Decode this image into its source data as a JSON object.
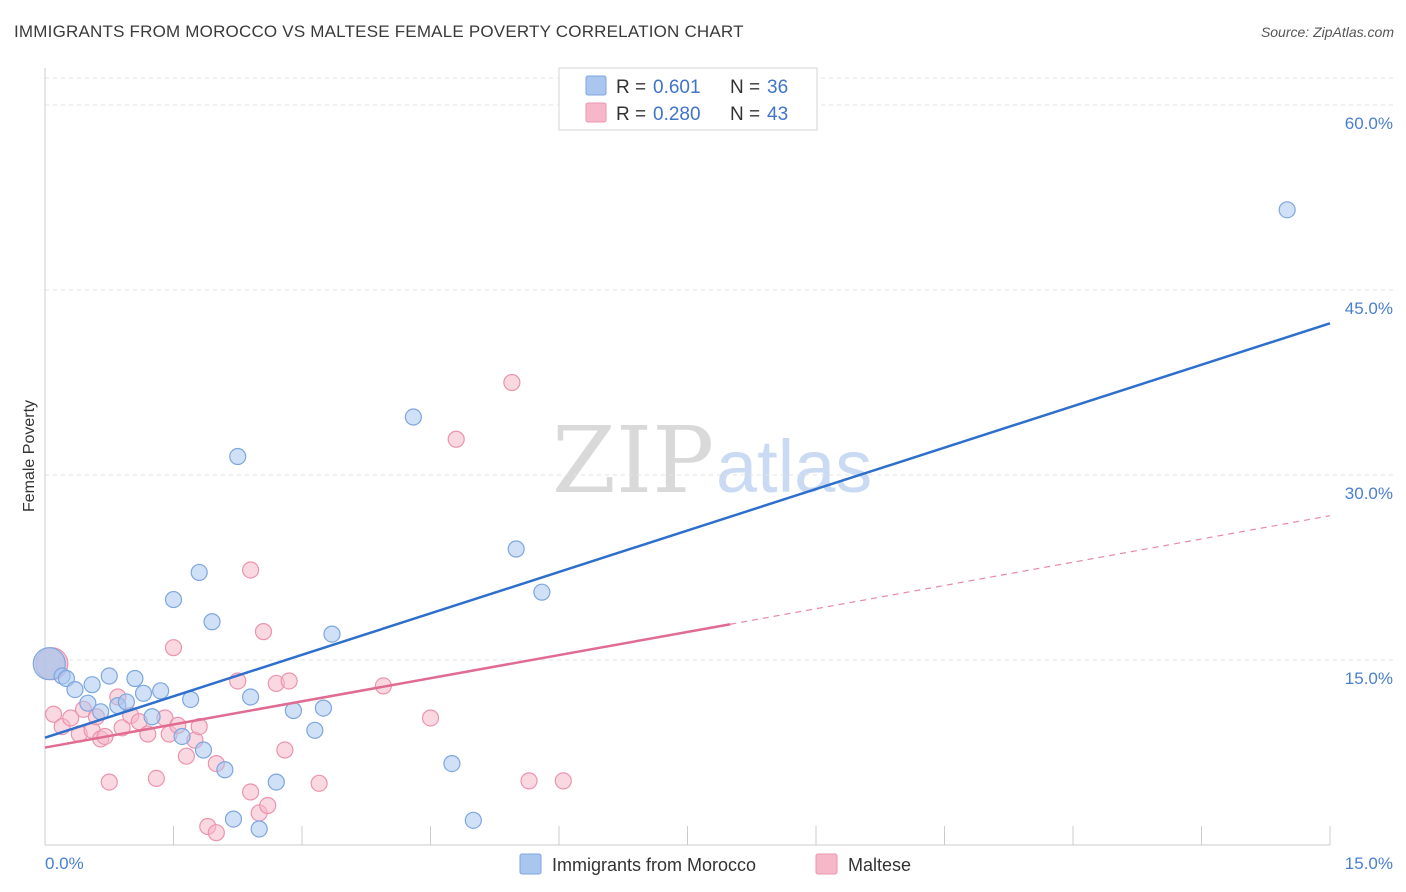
{
  "title": "IMMIGRANTS FROM MOROCCO VS MALTESE FEMALE POVERTY CORRELATION CHART",
  "source": "Source: ZipAtlas.com",
  "watermark": {
    "zip": "ZIP",
    "atlas": "atlas"
  },
  "legend_top": [
    {
      "r_label": "R =",
      "r_value": "0.601",
      "n_label": "N =",
      "n_value": "36",
      "color": "#a9c6ee"
    },
    {
      "r_label": "R =",
      "r_value": "0.280",
      "n_label": "N =",
      "n_value": "43",
      "color": "#f6b8c9"
    }
  ],
  "chart_data": {
    "type": "scatter",
    "title": "IMMIGRANTS FROM MOROCCO VS MALTESE FEMALE POVERTY CORRELATION CHART",
    "xlabel": "",
    "ylabel": "Female Poverty",
    "xlim": [
      0,
      15
    ],
    "ylim": [
      0,
      63
    ],
    "x_tick_labels": [
      "0.0%",
      "15.0%"
    ],
    "y_ticks": [
      15,
      30,
      45,
      60
    ],
    "y_tick_labels": [
      "15.0%",
      "30.0%",
      "45.0%",
      "60.0%"
    ],
    "grid": true,
    "series": [
      {
        "name": "Immigrants from Morocco",
        "color": "#a9c6ee",
        "line_color": "#2f6fcc",
        "trend": {
          "x": [
            0,
            15
          ],
          "y": [
            8.7,
            42.3
          ],
          "dashed_from": null
        },
        "points": [
          [
            0.05,
            14.7
          ],
          [
            0.2,
            13.7
          ],
          [
            0.25,
            13.5
          ],
          [
            0.35,
            12.6
          ],
          [
            0.5,
            11.5
          ],
          [
            0.55,
            13.0
          ],
          [
            0.65,
            10.8
          ],
          [
            0.75,
            13.7
          ],
          [
            0.85,
            11.3
          ],
          [
            0.95,
            11.6
          ],
          [
            1.05,
            13.5
          ],
          [
            1.15,
            12.3
          ],
          [
            1.25,
            10.4
          ],
          [
            1.35,
            12.5
          ],
          [
            1.5,
            19.9
          ],
          [
            1.6,
            8.8
          ],
          [
            1.7,
            11.8
          ],
          [
            1.8,
            22.1
          ],
          [
            1.85,
            7.7
          ],
          [
            1.95,
            18.1
          ],
          [
            2.1,
            6.1
          ],
          [
            2.2,
            2.1
          ],
          [
            2.25,
            31.5
          ],
          [
            2.4,
            12.0
          ],
          [
            2.5,
            1.3
          ],
          [
            2.7,
            5.1
          ],
          [
            2.9,
            10.9
          ],
          [
            3.15,
            9.3
          ],
          [
            3.25,
            11.1
          ],
          [
            3.35,
            17.1
          ],
          [
            4.3,
            34.7
          ],
          [
            4.75,
            6.6
          ],
          [
            5.0,
            2.0
          ],
          [
            5.5,
            24.0
          ],
          [
            5.8,
            20.5
          ],
          [
            14.5,
            51.5
          ]
        ]
      },
      {
        "name": "Maltese",
        "color": "#f6b8c9",
        "line_color": "#e06c92",
        "trend": {
          "x": [
            0,
            8.0,
            15
          ],
          "y": [
            7.9,
            17.9,
            26.7
          ],
          "dashed_from": 8.0
        },
        "points": [
          [
            0.1,
            10.6
          ],
          [
            0.2,
            9.6
          ],
          [
            0.3,
            10.3
          ],
          [
            0.4,
            9.0
          ],
          [
            0.45,
            11.0
          ],
          [
            0.55,
            9.3
          ],
          [
            0.6,
            10.4
          ],
          [
            0.65,
            8.6
          ],
          [
            0.7,
            8.8
          ],
          [
            0.75,
            5.1
          ],
          [
            0.85,
            12.0
          ],
          [
            0.9,
            9.5
          ],
          [
            1.0,
            10.5
          ],
          [
            1.1,
            10.0
          ],
          [
            1.2,
            9.0
          ],
          [
            1.3,
            5.4
          ],
          [
            1.4,
            10.3
          ],
          [
            1.45,
            9.0
          ],
          [
            1.5,
            16.0
          ],
          [
            1.55,
            9.7
          ],
          [
            1.65,
            7.2
          ],
          [
            1.75,
            8.5
          ],
          [
            1.8,
            9.6
          ],
          [
            1.9,
            1.5
          ],
          [
            2.0,
            6.6
          ],
          [
            2.0,
            1.0
          ],
          [
            2.25,
            13.3
          ],
          [
            2.4,
            22.3
          ],
          [
            2.4,
            4.3
          ],
          [
            2.5,
            2.6
          ],
          [
            2.55,
            17.3
          ],
          [
            2.6,
            3.2
          ],
          [
            2.7,
            13.1
          ],
          [
            2.8,
            7.7
          ],
          [
            2.85,
            13.3
          ],
          [
            3.2,
            5.0
          ],
          [
            3.95,
            12.9
          ],
          [
            4.5,
            10.3
          ],
          [
            4.8,
            32.9
          ],
          [
            5.45,
            37.5
          ],
          [
            5.65,
            5.2
          ],
          [
            6.05,
            5.2
          ],
          [
            0.08,
            14.7
          ]
        ]
      }
    ]
  }
}
